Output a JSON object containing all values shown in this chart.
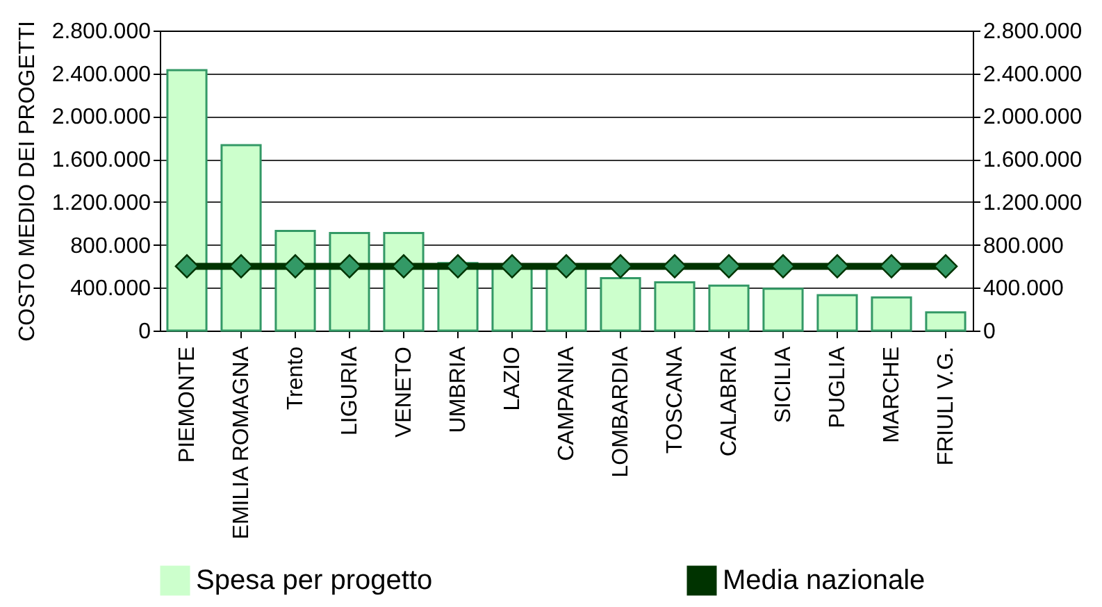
{
  "chart_data": {
    "type": "bar",
    "ylabel": "COSTO MEDIO DEI PROGETTI",
    "categories": [
      "PIEMONTE",
      "EMILIA ROMAGNA",
      "Trento",
      "LIGURIA",
      "VENETO",
      "UMBRIA",
      "LAZIO",
      "CAMPANIA",
      "LOMBARDIA",
      "TOSCANA",
      "CALABRIA",
      "SICILIA",
      "PUGLIA",
      "MARCHE",
      "FRIULI V.G."
    ],
    "series": [
      {
        "name": "Spesa per progetto",
        "color": "#ccffcc",
        "values": [
          2430000,
          1730000,
          930000,
          910000,
          910000,
          630000,
          610000,
          600000,
          490000,
          450000,
          420000,
          390000,
          330000,
          310000,
          170000
        ]
      },
      {
        "name": "Media nazionale",
        "type": "line",
        "axis": "y2",
        "color": "#003300",
        "values": [
          600000,
          600000,
          600000,
          600000,
          600000,
          600000,
          600000,
          600000,
          600000,
          600000,
          600000,
          600000,
          600000,
          600000,
          600000
        ]
      }
    ],
    "ylim": [
      0,
      2800000
    ],
    "yticks": [
      {
        "value": 0,
        "label": "0"
      },
      {
        "value": 400000,
        "label": "400.000"
      },
      {
        "value": 800000,
        "label": "800.000"
      },
      {
        "value": 1200000,
        "label": "1.200.000"
      },
      {
        "value": 1600000,
        "label": "1.600.000"
      },
      {
        "value": 2000000,
        "label": "2.000.000"
      },
      {
        "value": 2400000,
        "label": "2.400.000"
      },
      {
        "value": 2800000,
        "label": "2.800.000"
      }
    ],
    "y2lim": [
      0,
      2800000
    ],
    "y2ticks": [
      {
        "value": 0,
        "label": "0"
      },
      {
        "value": 400000,
        "label": "400.000"
      },
      {
        "value": 800000,
        "label": "800.000"
      },
      {
        "value": 1200000,
        "label": "1.200.000"
      },
      {
        "value": 1600000,
        "label": "1.600.000"
      },
      {
        "value": 2000000,
        "label": "2.000.000"
      },
      {
        "value": 2400000,
        "label": "2.400.000"
      },
      {
        "value": 2800000,
        "label": "2.800.000"
      }
    ],
    "grid": "y",
    "legend": "bottom",
    "marker": "diamond"
  }
}
